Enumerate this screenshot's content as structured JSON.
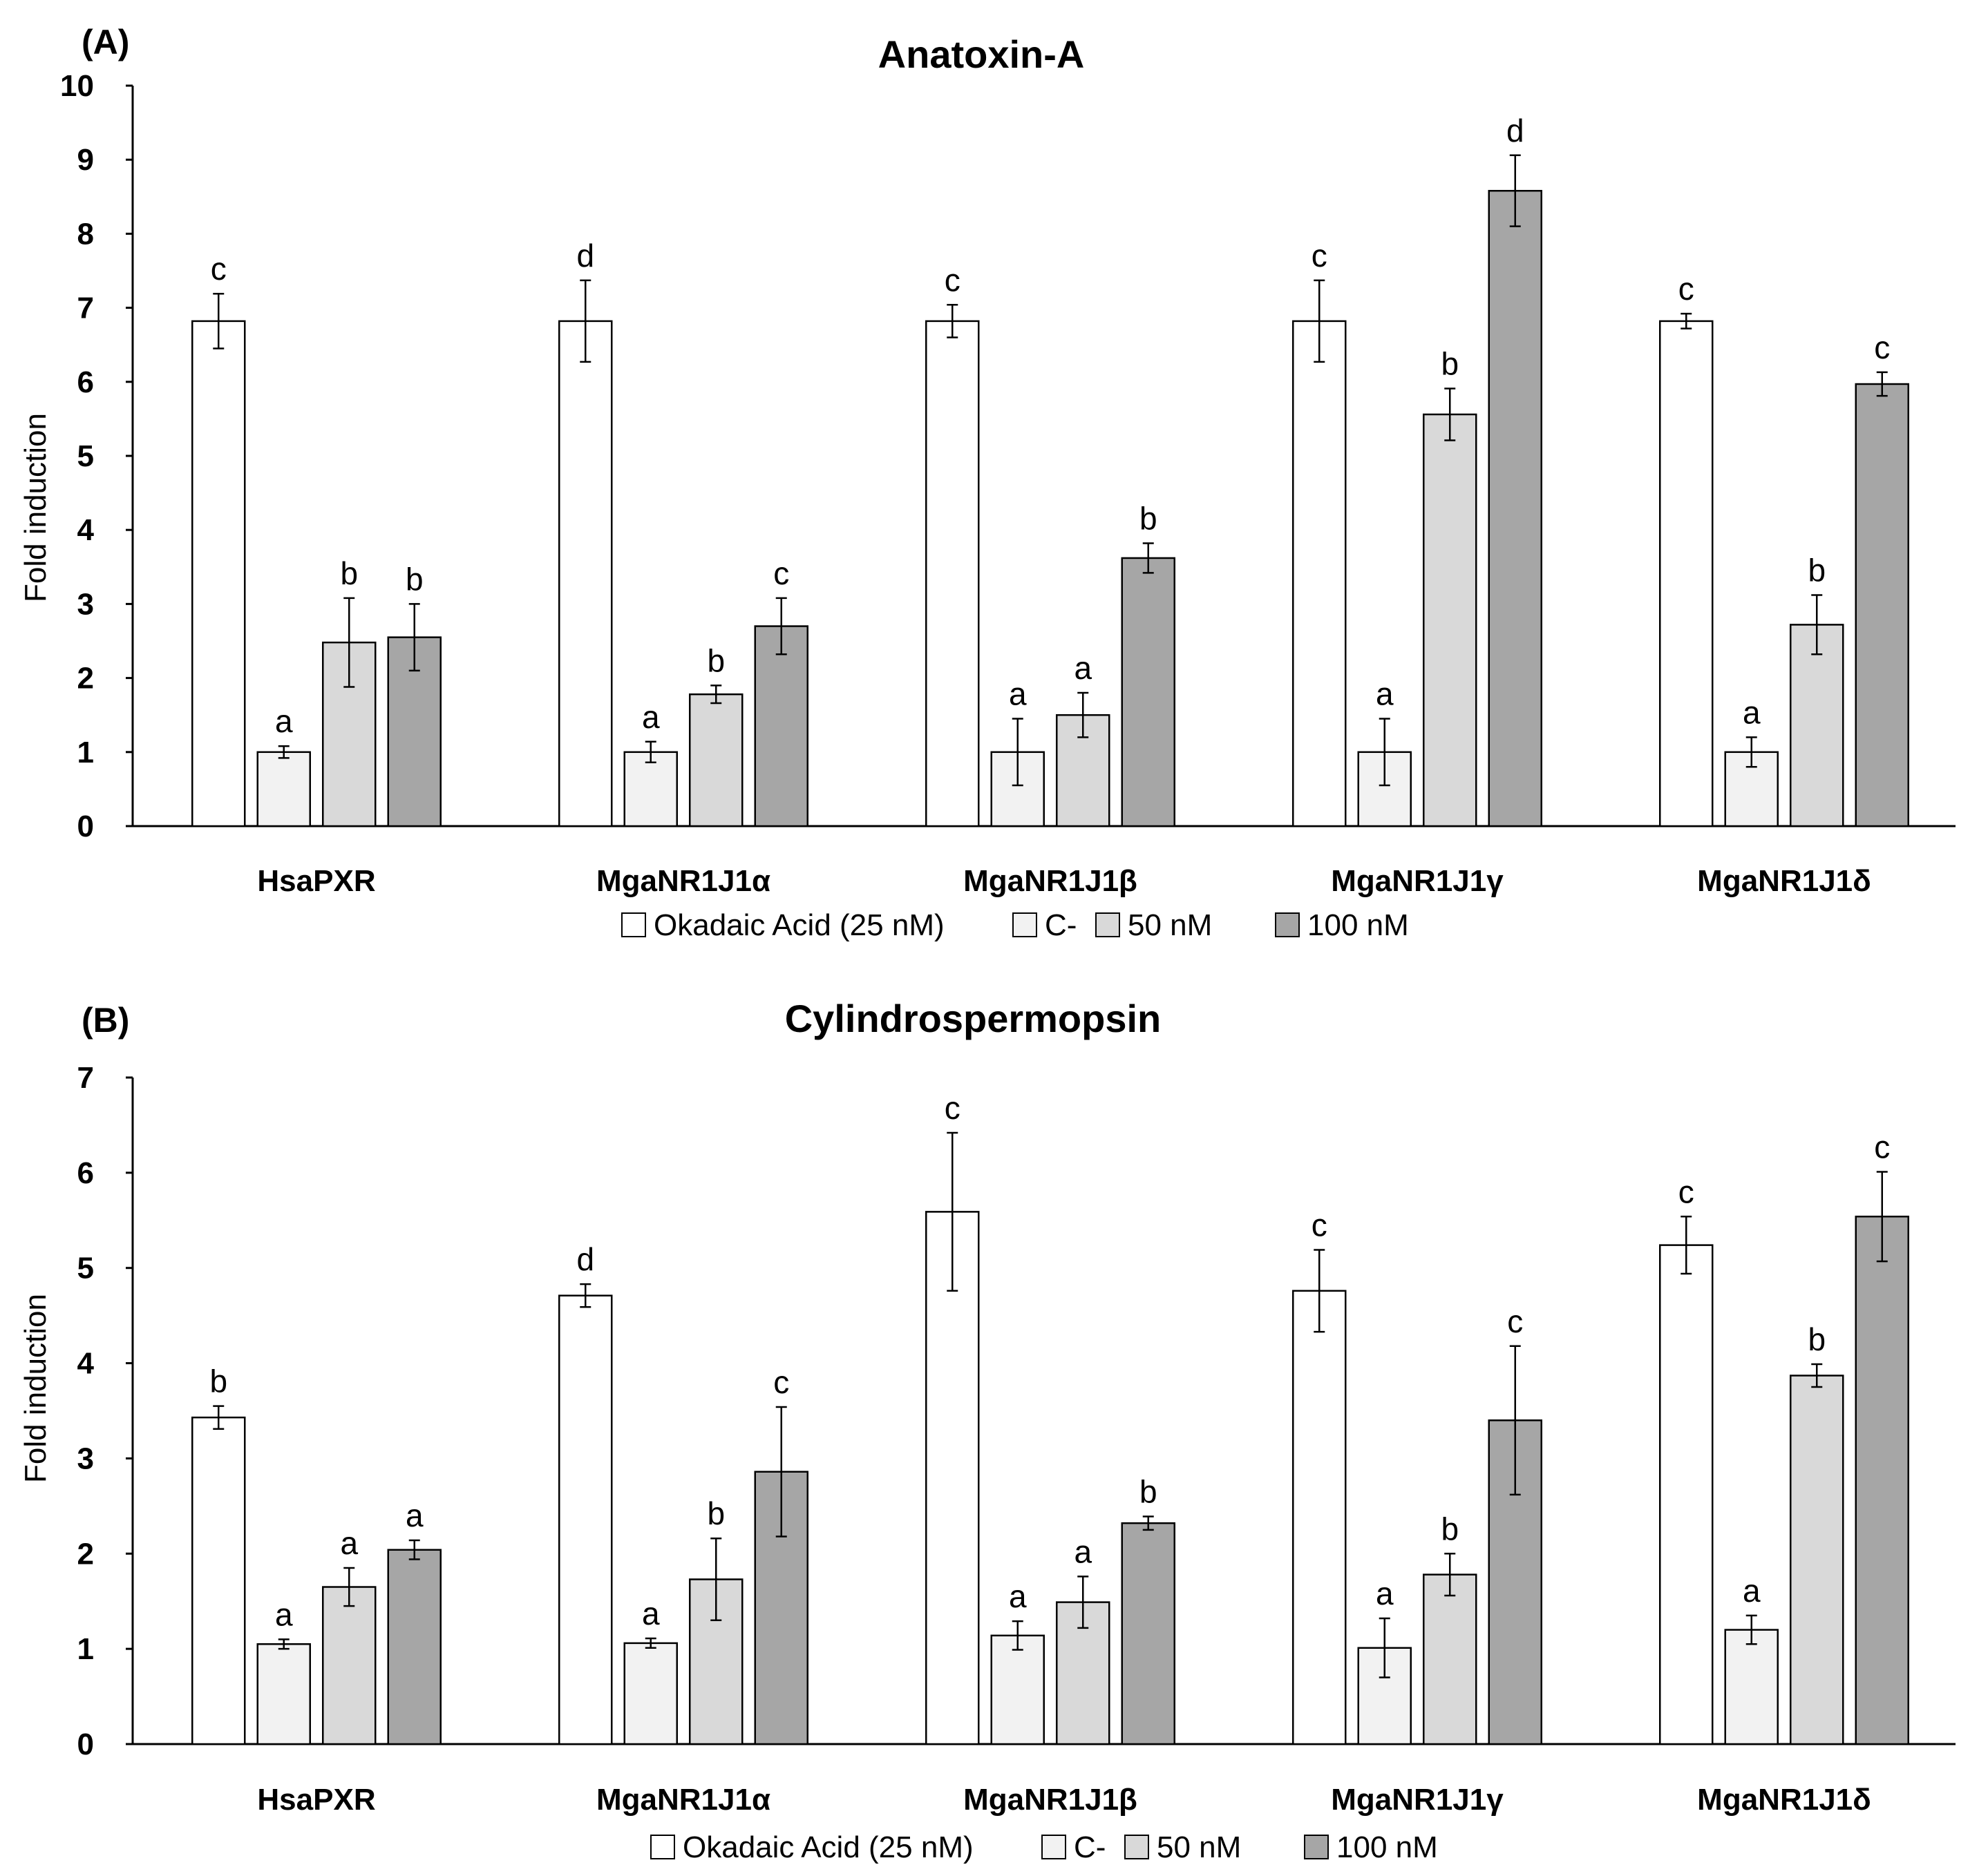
{
  "legend": [
    {
      "label": "Okadaic Acid (25 nM)",
      "color": "#ffffff"
    },
    {
      "label": "C-",
      "color": "#f2f2f2"
    },
    {
      "label": "50 nM",
      "color": "#d9d9d9"
    },
    {
      "label": "100 nM",
      "color": "#a6a6a6"
    }
  ],
  "chart_data": [
    {
      "type": "bar",
      "panel": "(A)",
      "title": "Anatoxin-A",
      "xlabel": "",
      "ylabel": "Fold induction",
      "ylim": [
        0,
        10
      ],
      "yticks": [
        0,
        1,
        2,
        3,
        4,
        5,
        6,
        7,
        8,
        9,
        10
      ],
      "categories": [
        "HsaPXR",
        "MgaNR1J1α",
        "MgaNR1J1β",
        "MgaNR1J1γ",
        "MgaNR1J1δ"
      ],
      "series": [
        {
          "name": "Okadaic Acid (25 nM)",
          "values": [
            6.82,
            6.82,
            6.82,
            6.82,
            6.82
          ],
          "errors": [
            0.37,
            0.55,
            0.22,
            0.55,
            0.1
          ],
          "letters": [
            "c",
            "d",
            "c",
            "c",
            "c"
          ]
        },
        {
          "name": "C-",
          "values": [
            1.0,
            1.0,
            1.0,
            1.0,
            1.0
          ],
          "errors": [
            0.08,
            0.14,
            0.45,
            0.45,
            0.2
          ],
          "letters": [
            "a",
            "a",
            "a",
            "a",
            "a"
          ]
        },
        {
          "name": "50 nM",
          "values": [
            2.48,
            1.78,
            1.5,
            5.56,
            2.72
          ],
          "errors": [
            0.6,
            0.12,
            0.3,
            0.35,
            0.4
          ],
          "letters": [
            "b",
            "b",
            "a",
            "b",
            "b"
          ]
        },
        {
          "name": "100 nM",
          "values": [
            2.55,
            2.7,
            3.62,
            8.58,
            5.97
          ],
          "errors": [
            0.45,
            0.38,
            0.2,
            0.48,
            0.16
          ],
          "letters": [
            "b",
            "c",
            "b",
            "d",
            "c"
          ]
        }
      ]
    },
    {
      "type": "bar",
      "panel": "(B)",
      "title": "Cylindrospermopsin",
      "xlabel": "",
      "ylabel": "Fold induction",
      "ylim": [
        0,
        7
      ],
      "yticks": [
        0,
        1,
        2,
        3,
        4,
        5,
        6,
        7
      ],
      "categories": [
        "HsaPXR",
        "MgaNR1J1α",
        "MgaNR1J1β",
        "MgaNR1J1γ",
        "MgaNR1J1δ"
      ],
      "series": [
        {
          "name": "Okadaic Acid (25 nM)",
          "values": [
            3.43,
            4.71,
            5.59,
            4.76,
            5.24
          ],
          "errors": [
            0.12,
            0.12,
            0.83,
            0.43,
            0.3
          ],
          "letters": [
            "b",
            "d",
            "c",
            "c",
            "c"
          ]
        },
        {
          "name": "C-",
          "values": [
            1.05,
            1.06,
            1.14,
            1.01,
            1.2
          ],
          "errors": [
            0.05,
            0.05,
            0.15,
            0.31,
            0.15
          ],
          "letters": [
            "a",
            "a",
            "a",
            "a",
            "a"
          ]
        },
        {
          "name": "50 nM",
          "values": [
            1.65,
            1.73,
            1.49,
            1.78,
            3.87
          ],
          "errors": [
            0.2,
            0.43,
            0.27,
            0.22,
            0.12
          ],
          "letters": [
            "a",
            "b",
            "a",
            "b",
            "b"
          ]
        },
        {
          "name": "100 nM",
          "values": [
            2.04,
            2.86,
            2.32,
            3.4,
            5.54
          ],
          "errors": [
            0.1,
            0.68,
            0.07,
            0.78,
            0.47
          ],
          "letters": [
            "a",
            "c",
            "b",
            "c",
            "c"
          ]
        }
      ]
    }
  ]
}
